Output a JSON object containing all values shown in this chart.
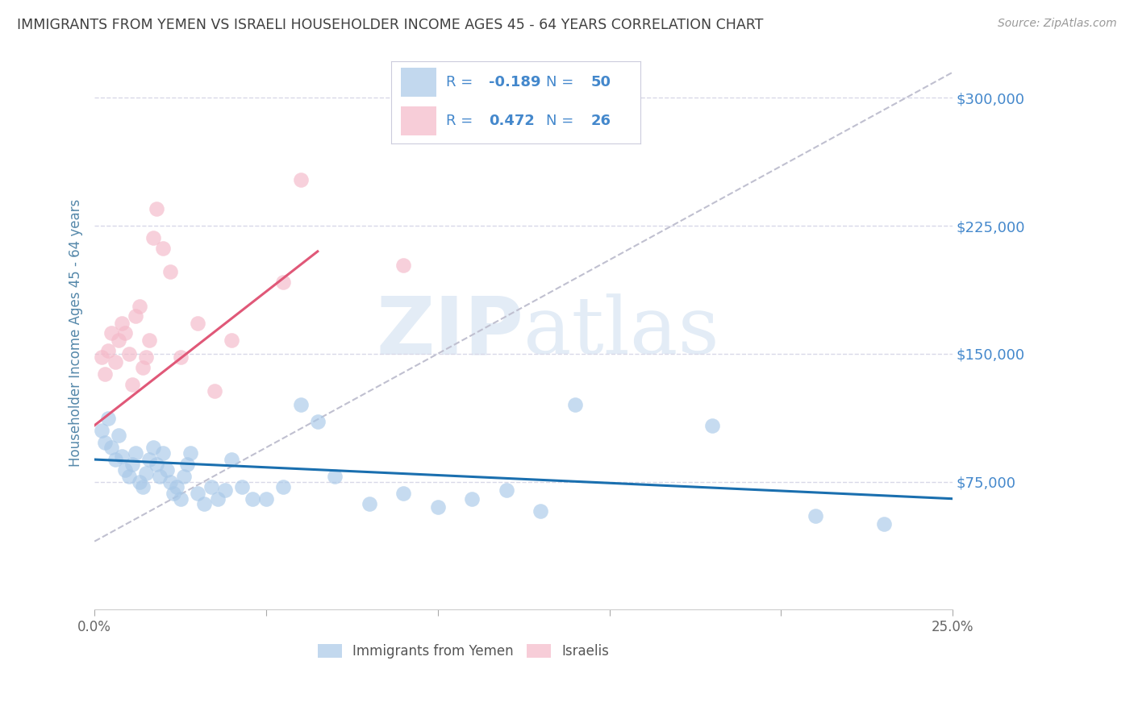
{
  "title": "IMMIGRANTS FROM YEMEN VS ISRAELI HOUSEHOLDER INCOME AGES 45 - 64 YEARS CORRELATION CHART",
  "source": "Source: ZipAtlas.com",
  "ylabel": "Householder Income Ages 45 - 64 years",
  "xlim": [
    0.0,
    0.25
  ],
  "ylim": [
    0,
    325000
  ],
  "xticks": [
    0.0,
    0.05,
    0.1,
    0.15,
    0.2,
    0.25
  ],
  "xticklabels": [
    "0.0%",
    "",
    "",
    "",
    "",
    "25.0%"
  ],
  "yticks_right": [
    75000,
    150000,
    225000,
    300000
  ],
  "ytick_labels_right": [
    "$75,000",
    "$150,000",
    "$225,000",
    "$300,000"
  ],
  "watermark_zip": "ZIP",
  "watermark_atlas": "atlas",
  "blue_color": "#a8c8e8",
  "pink_color": "#f4b8c8",
  "blue_line_color": "#1a6faf",
  "pink_line_color": "#e05878",
  "dashed_line_color": "#c0c0d0",
  "grid_color": "#d8d8e8",
  "right_label_color": "#4488cc",
  "axis_label_color": "#5588aa",
  "title_color": "#404040",
  "source_color": "#999999",
  "legend_text_color": "#4488cc",
  "legend_border_color": "#ccccdd",
  "blue_scatter": [
    [
      0.002,
      105000
    ],
    [
      0.003,
      98000
    ],
    [
      0.004,
      112000
    ],
    [
      0.005,
      95000
    ],
    [
      0.006,
      88000
    ],
    [
      0.007,
      102000
    ],
    [
      0.008,
      90000
    ],
    [
      0.009,
      82000
    ],
    [
      0.01,
      78000
    ],
    [
      0.011,
      85000
    ],
    [
      0.012,
      92000
    ],
    [
      0.013,
      75000
    ],
    [
      0.014,
      72000
    ],
    [
      0.015,
      80000
    ],
    [
      0.016,
      88000
    ],
    [
      0.017,
      95000
    ],
    [
      0.018,
      85000
    ],
    [
      0.019,
      78000
    ],
    [
      0.02,
      92000
    ],
    [
      0.021,
      82000
    ],
    [
      0.022,
      75000
    ],
    [
      0.023,
      68000
    ],
    [
      0.024,
      72000
    ],
    [
      0.025,
      65000
    ],
    [
      0.026,
      78000
    ],
    [
      0.027,
      85000
    ],
    [
      0.028,
      92000
    ],
    [
      0.03,
      68000
    ],
    [
      0.032,
      62000
    ],
    [
      0.034,
      72000
    ],
    [
      0.036,
      65000
    ],
    [
      0.038,
      70000
    ],
    [
      0.04,
      88000
    ],
    [
      0.043,
      72000
    ],
    [
      0.046,
      65000
    ],
    [
      0.05,
      65000
    ],
    [
      0.055,
      72000
    ],
    [
      0.06,
      120000
    ],
    [
      0.065,
      110000
    ],
    [
      0.07,
      78000
    ],
    [
      0.08,
      62000
    ],
    [
      0.09,
      68000
    ],
    [
      0.1,
      60000
    ],
    [
      0.11,
      65000
    ],
    [
      0.12,
      70000
    ],
    [
      0.13,
      58000
    ],
    [
      0.14,
      120000
    ],
    [
      0.18,
      108000
    ],
    [
      0.21,
      55000
    ],
    [
      0.23,
      50000
    ]
  ],
  "pink_scatter": [
    [
      0.002,
      148000
    ],
    [
      0.003,
      138000
    ],
    [
      0.004,
      152000
    ],
    [
      0.005,
      162000
    ],
    [
      0.006,
      145000
    ],
    [
      0.007,
      158000
    ],
    [
      0.008,
      168000
    ],
    [
      0.009,
      162000
    ],
    [
      0.01,
      150000
    ],
    [
      0.011,
      132000
    ],
    [
      0.012,
      172000
    ],
    [
      0.013,
      178000
    ],
    [
      0.014,
      142000
    ],
    [
      0.015,
      148000
    ],
    [
      0.016,
      158000
    ],
    [
      0.017,
      218000
    ],
    [
      0.018,
      235000
    ],
    [
      0.02,
      212000
    ],
    [
      0.022,
      198000
    ],
    [
      0.025,
      148000
    ],
    [
      0.03,
      168000
    ],
    [
      0.035,
      128000
    ],
    [
      0.04,
      158000
    ],
    [
      0.055,
      192000
    ],
    [
      0.06,
      252000
    ],
    [
      0.09,
      202000
    ]
  ],
  "blue_line": [
    [
      0.0,
      88000
    ],
    [
      0.25,
      65000
    ]
  ],
  "pink_line": [
    [
      0.0,
      108000
    ],
    [
      0.065,
      210000
    ]
  ],
  "dashed_line": [
    [
      0.0,
      40000
    ],
    [
      0.25,
      315000
    ]
  ]
}
